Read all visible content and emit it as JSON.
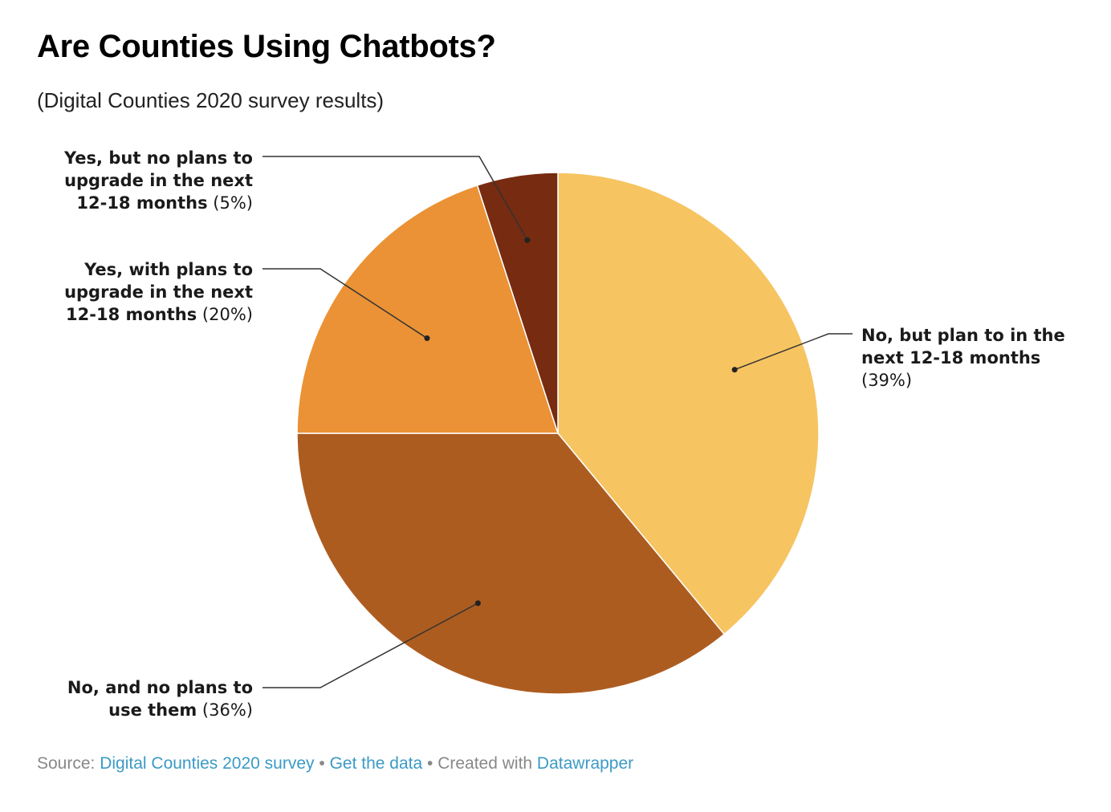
{
  "header": {
    "title": "Are Counties Using Chatbots?",
    "subtitle": "(Digital Counties 2020 survey results)"
  },
  "footer": {
    "source_prefix": "Source: ",
    "source_link": "Digital Counties 2020 survey",
    "separator": " • ",
    "get_data": "Get the data",
    "created_with": "Created with ",
    "datawrapper": "Datawrapper"
  },
  "chart_data": {
    "type": "pie",
    "slices": [
      {
        "label_lines": [
          "No, but plan to in the",
          "next 12-18 months"
        ],
        "pct_text": "(39%)",
        "value": 39,
        "color": "#f6c461",
        "label_side": "right"
      },
      {
        "label_lines": [
          "No, and no plans to",
          "use them"
        ],
        "pct_text": "(36%)",
        "value": 36,
        "color": "#ad5c20",
        "label_side": "left"
      },
      {
        "label_lines": [
          "Yes, with plans to",
          "upgrade in the next",
          "12-18 months"
        ],
        "pct_text": "(20%)",
        "value": 20,
        "color": "#ea9235",
        "label_side": "left"
      },
      {
        "label_lines": [
          "Yes, but no plans to",
          "upgrade in the next",
          "12-18 months"
        ],
        "pct_text": "(5%)",
        "value": 5,
        "color": "#772b10",
        "label_side": "left"
      }
    ]
  }
}
